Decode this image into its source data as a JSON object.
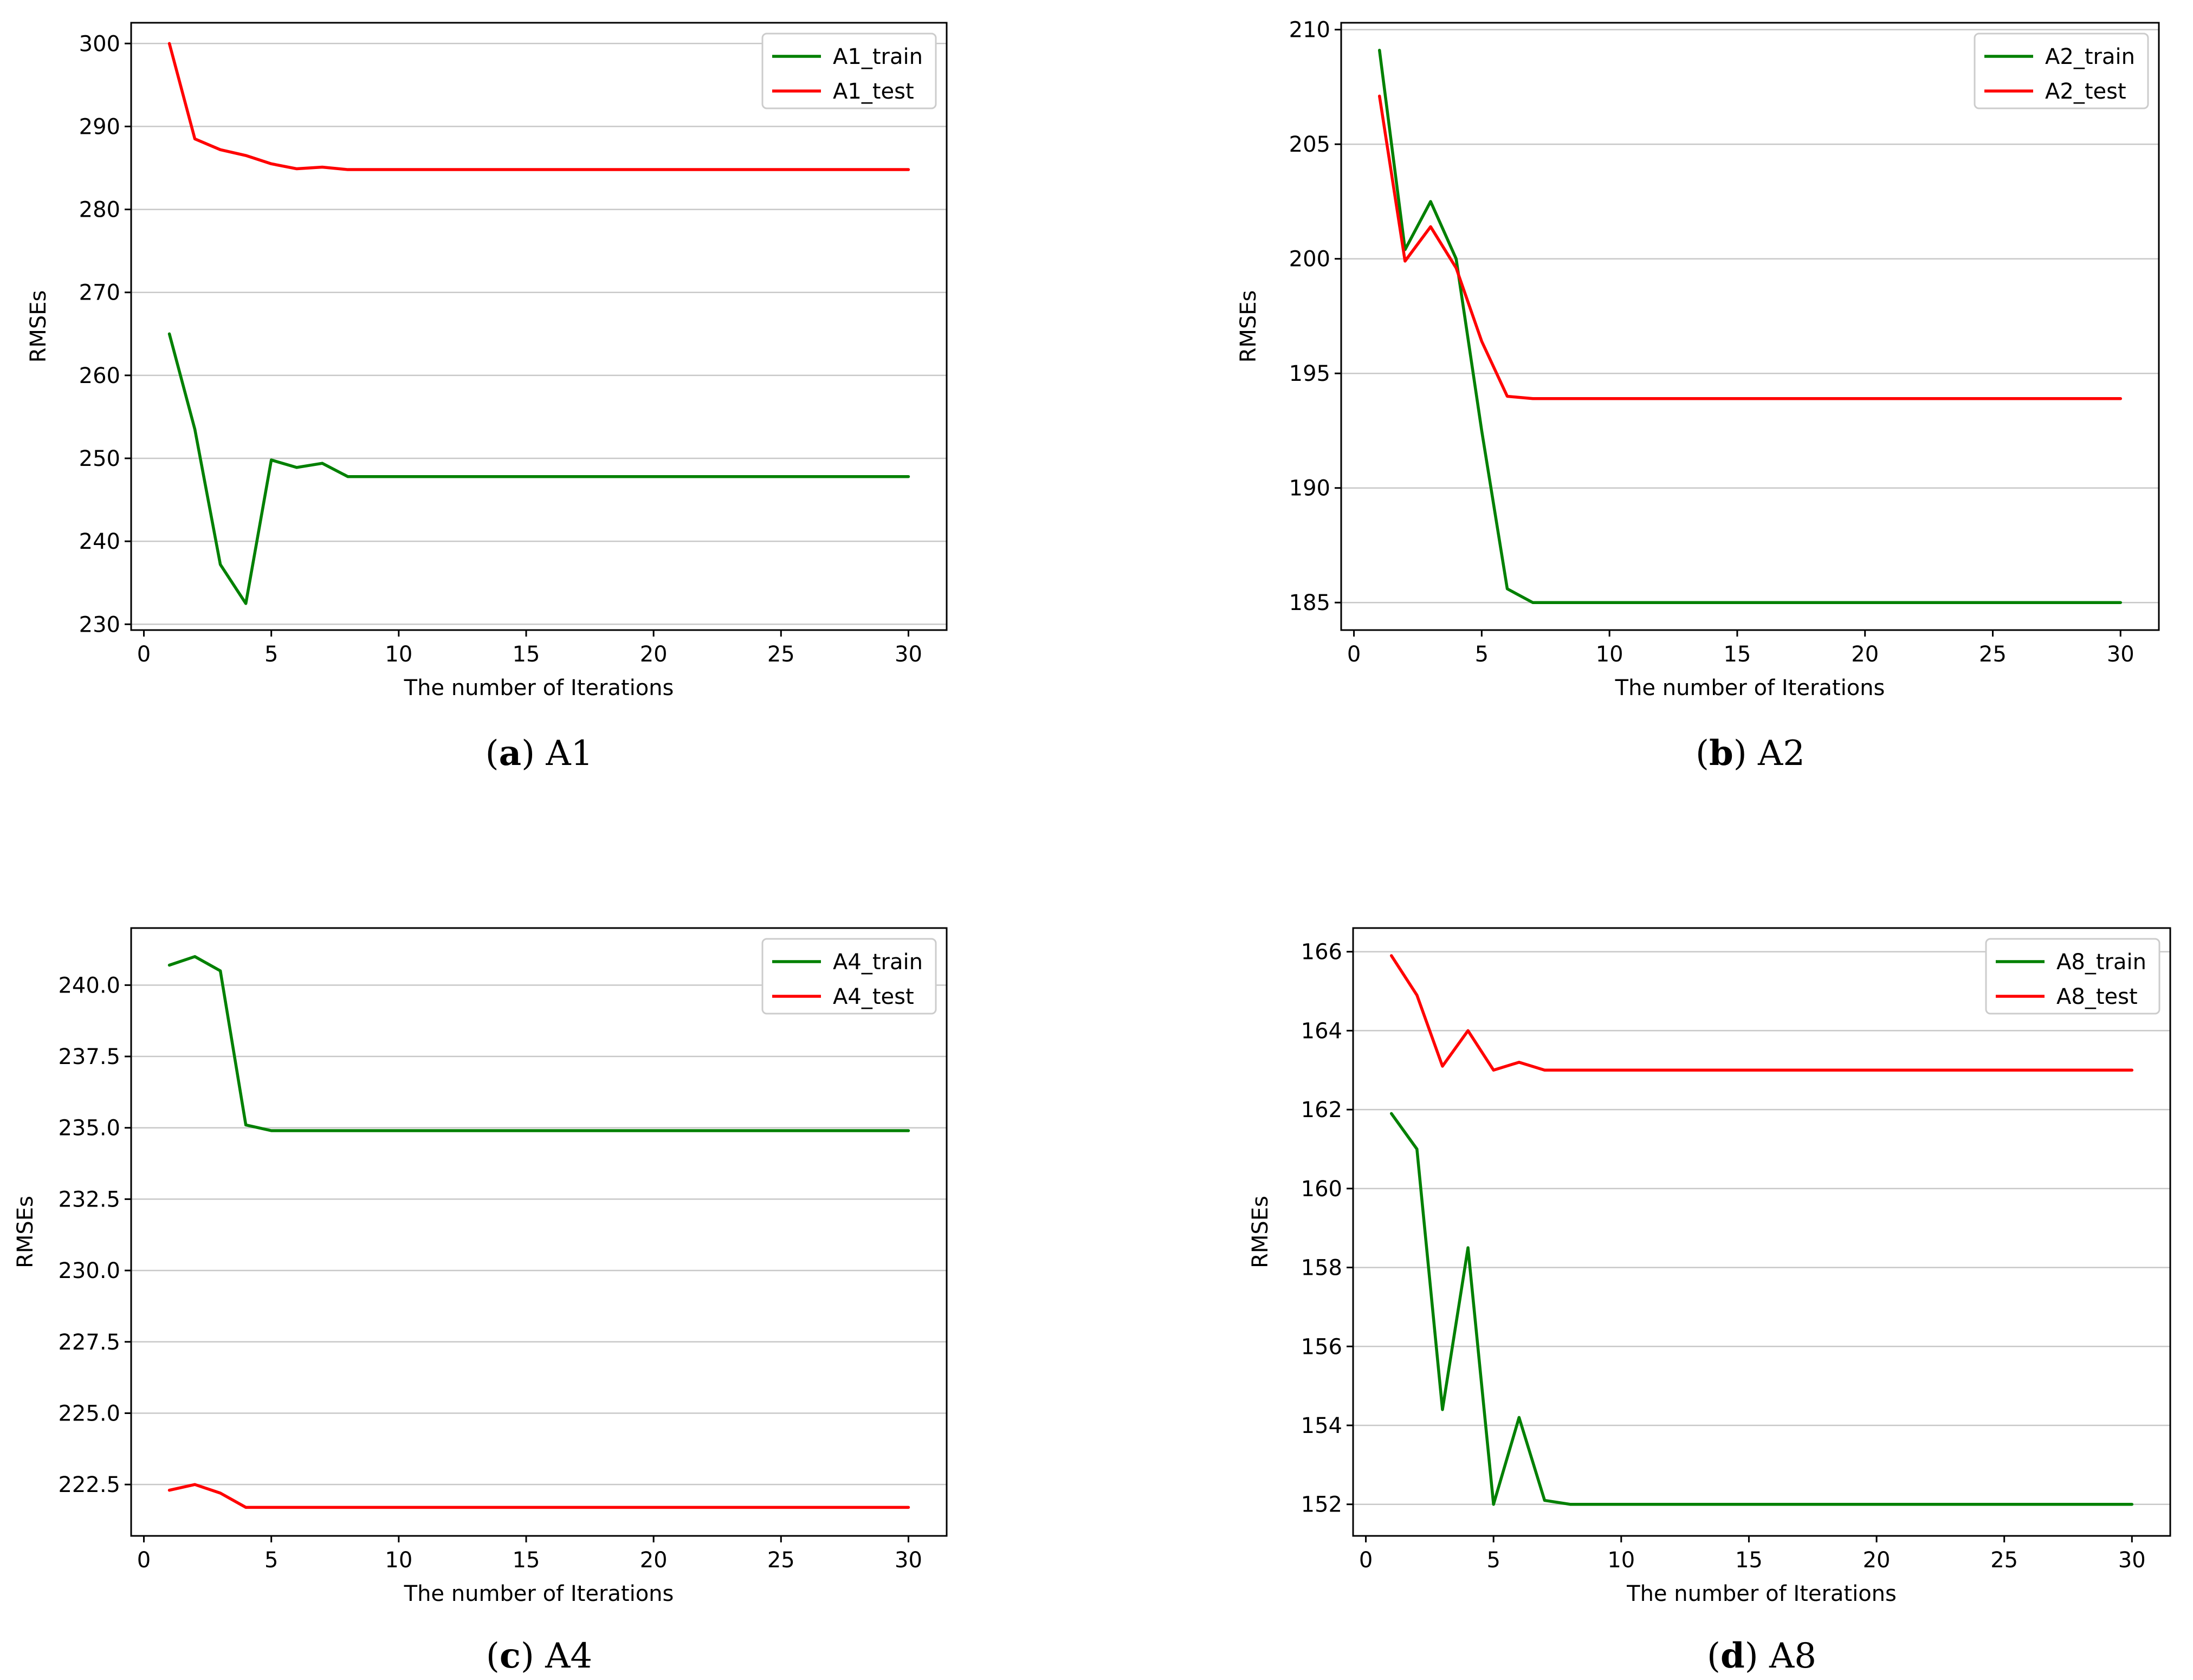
{
  "chart_data": [
    {
      "type": "line",
      "panel_letter": "a",
      "panel_name": "A1",
      "title": "",
      "xlabel": "The number of Iterations",
      "ylabel": "RMSEs",
      "xlim": [
        -0.5,
        31.5
      ],
      "ylim": [
        229.3,
        302.5
      ],
      "xticks": [
        0,
        5,
        10,
        15,
        20,
        25,
        30
      ],
      "xtick_labels": [
        "0",
        "5",
        "10",
        "15",
        "20",
        "25",
        "30"
      ],
      "yticks": [
        230,
        240,
        250,
        260,
        270,
        280,
        290,
        300
      ],
      "ytick_labels": [
        "230",
        "240",
        "250",
        "260",
        "270",
        "280",
        "290",
        "300"
      ],
      "grid": "y",
      "legend": "top-right",
      "x": [
        1,
        2,
        3,
        4,
        5,
        6,
        7,
        8,
        9,
        10,
        11,
        12,
        13,
        14,
        15,
        16,
        17,
        18,
        19,
        20,
        21,
        22,
        23,
        24,
        25,
        26,
        27,
        28,
        29,
        30
      ],
      "series": [
        {
          "name": "A1_train",
          "color": "#008000",
          "values": [
            265.0,
            253.5,
            237.2,
            232.5,
            249.8,
            248.9,
            249.4,
            247.8,
            247.8,
            247.8,
            247.8,
            247.8,
            247.8,
            247.8,
            247.8,
            247.8,
            247.8,
            247.8,
            247.8,
            247.8,
            247.8,
            247.8,
            247.8,
            247.8,
            247.8,
            247.8,
            247.8,
            247.8,
            247.8,
            247.8
          ]
        },
        {
          "name": "A1_test",
          "color": "#ff0000",
          "values": [
            300.0,
            288.5,
            287.2,
            286.5,
            285.5,
            284.9,
            285.1,
            284.8,
            284.8,
            284.8,
            284.8,
            284.8,
            284.8,
            284.8,
            284.8,
            284.8,
            284.8,
            284.8,
            284.8,
            284.8,
            284.8,
            284.8,
            284.8,
            284.8,
            284.8,
            284.8,
            284.8,
            284.8,
            284.8,
            284.8
          ]
        }
      ]
    },
    {
      "type": "line",
      "panel_letter": "b",
      "panel_name": "A2",
      "title": "",
      "xlabel": "The number of Iterations",
      "ylabel": "RMSEs",
      "xlim": [
        -0.5,
        31.5
      ],
      "ylim": [
        183.8,
        210.3
      ],
      "xticks": [
        0,
        5,
        10,
        15,
        20,
        25,
        30
      ],
      "xtick_labels": [
        "0",
        "5",
        "10",
        "15",
        "20",
        "25",
        "30"
      ],
      "yticks": [
        185,
        190,
        195,
        200,
        205,
        210
      ],
      "ytick_labels": [
        "185",
        "190",
        "195",
        "200",
        "205",
        "210"
      ],
      "grid": "y",
      "legend": "top-right",
      "x": [
        1,
        2,
        3,
        4,
        5,
        6,
        7,
        8,
        9,
        10,
        11,
        12,
        13,
        14,
        15,
        16,
        17,
        18,
        19,
        20,
        21,
        22,
        23,
        24,
        25,
        26,
        27,
        28,
        29,
        30
      ],
      "series": [
        {
          "name": "A2_train",
          "color": "#008000",
          "values": [
            209.1,
            200.4,
            202.5,
            200.0,
            192.5,
            185.6,
            185.0,
            185.0,
            185.0,
            185.0,
            185.0,
            185.0,
            185.0,
            185.0,
            185.0,
            185.0,
            185.0,
            185.0,
            185.0,
            185.0,
            185.0,
            185.0,
            185.0,
            185.0,
            185.0,
            185.0,
            185.0,
            185.0,
            185.0,
            185.0
          ]
        },
        {
          "name": "A2_test",
          "color": "#ff0000",
          "values": [
            207.1,
            199.9,
            201.4,
            199.6,
            196.4,
            194.0,
            193.9,
            193.9,
            193.9,
            193.9,
            193.9,
            193.9,
            193.9,
            193.9,
            193.9,
            193.9,
            193.9,
            193.9,
            193.9,
            193.9,
            193.9,
            193.9,
            193.9,
            193.9,
            193.9,
            193.9,
            193.9,
            193.9,
            193.9,
            193.9
          ]
        }
      ]
    },
    {
      "type": "line",
      "panel_letter": "c",
      "panel_name": "A4",
      "title": "",
      "xlabel": "The number of Iterations",
      "ylabel": "RMSEs",
      "xlim": [
        -0.5,
        31.5
      ],
      "ylim": [
        220.7,
        242.0
      ],
      "xticks": [
        0,
        5,
        10,
        15,
        20,
        25,
        30
      ],
      "xtick_labels": [
        "0",
        "5",
        "10",
        "15",
        "20",
        "25",
        "30"
      ],
      "yticks": [
        222.5,
        225.0,
        227.5,
        230.0,
        232.5,
        235.0,
        237.5,
        240.0
      ],
      "ytick_labels": [
        "222.5",
        "225.0",
        "227.5",
        "230.0",
        "232.5",
        "235.0",
        "237.5",
        "240.0"
      ],
      "grid": "y",
      "legend": "top-right",
      "x": [
        1,
        2,
        3,
        4,
        5,
        6,
        7,
        8,
        9,
        10,
        11,
        12,
        13,
        14,
        15,
        16,
        17,
        18,
        19,
        20,
        21,
        22,
        23,
        24,
        25,
        26,
        27,
        28,
        29,
        30
      ],
      "series": [
        {
          "name": "A4_train",
          "color": "#008000",
          "values": [
            240.7,
            241.0,
            240.5,
            235.1,
            234.9,
            234.9,
            234.9,
            234.9,
            234.9,
            234.9,
            234.9,
            234.9,
            234.9,
            234.9,
            234.9,
            234.9,
            234.9,
            234.9,
            234.9,
            234.9,
            234.9,
            234.9,
            234.9,
            234.9,
            234.9,
            234.9,
            234.9,
            234.9,
            234.9,
            234.9
          ]
        },
        {
          "name": "A4_test",
          "color": "#ff0000",
          "values": [
            222.3,
            222.5,
            222.2,
            221.7,
            221.7,
            221.7,
            221.7,
            221.7,
            221.7,
            221.7,
            221.7,
            221.7,
            221.7,
            221.7,
            221.7,
            221.7,
            221.7,
            221.7,
            221.7,
            221.7,
            221.7,
            221.7,
            221.7,
            221.7,
            221.7,
            221.7,
            221.7,
            221.7,
            221.7,
            221.7
          ]
        }
      ]
    },
    {
      "type": "line",
      "panel_letter": "d",
      "panel_name": "A8",
      "title": "",
      "xlabel": "The number of Iterations",
      "ylabel": "RMSEs",
      "xlim": [
        -0.5,
        31.5
      ],
      "ylim": [
        151.2,
        166.6
      ],
      "xticks": [
        0,
        5,
        10,
        15,
        20,
        25,
        30
      ],
      "xtick_labels": [
        "0",
        "5",
        "10",
        "15",
        "20",
        "25",
        "30"
      ],
      "yticks": [
        152,
        154,
        156,
        158,
        160,
        162,
        164,
        166
      ],
      "ytick_labels": [
        "152",
        "154",
        "156",
        "158",
        "160",
        "162",
        "164",
        "166"
      ],
      "grid": "y",
      "legend": "top-right",
      "x": [
        1,
        2,
        3,
        4,
        5,
        6,
        7,
        8,
        9,
        10,
        11,
        12,
        13,
        14,
        15,
        16,
        17,
        18,
        19,
        20,
        21,
        22,
        23,
        24,
        25,
        26,
        27,
        28,
        29,
        30
      ],
      "series": [
        {
          "name": "A8_train",
          "color": "#008000",
          "values": [
            161.9,
            161.0,
            154.4,
            158.5,
            152.0,
            154.2,
            152.1,
            152.0,
            152.0,
            152.0,
            152.0,
            152.0,
            152.0,
            152.0,
            152.0,
            152.0,
            152.0,
            152.0,
            152.0,
            152.0,
            152.0,
            152.0,
            152.0,
            152.0,
            152.0,
            152.0,
            152.0,
            152.0,
            152.0,
            152.0
          ]
        },
        {
          "name": "A8_test",
          "color": "#ff0000",
          "values": [
            165.9,
            164.9,
            163.1,
            164.0,
            163.0,
            163.2,
            163.0,
            163.0,
            163.0,
            163.0,
            163.0,
            163.0,
            163.0,
            163.0,
            163.0,
            163.0,
            163.0,
            163.0,
            163.0,
            163.0,
            163.0,
            163.0,
            163.0,
            163.0,
            163.0,
            163.0,
            163.0,
            163.0,
            163.0,
            163.0
          ]
        }
      ]
    }
  ]
}
